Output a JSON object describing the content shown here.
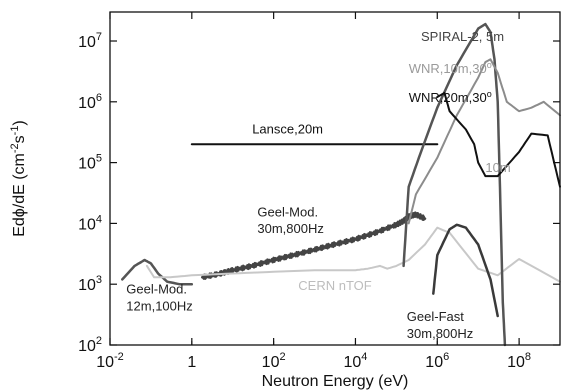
{
  "chart_data": {
    "type": "line",
    "xlabel": "Neutron Energy (eV)",
    "ylabel": "E dϕ/dE (cm⁻²s⁻¹)",
    "ylabel_main": "Edϕ/dE (cm",
    "ylabel_exp1": "-2",
    "ylabel_mid": "s",
    "ylabel_exp2": "-1",
    "ylabel_close": ")",
    "x_scale": "log",
    "y_scale": "log",
    "xlim": [
      0.01,
      1000000000
    ],
    "ylim": [
      100,
      30000000
    ],
    "grid": false,
    "x_ticks": [
      {
        "value": 0.01,
        "base": "10",
        "exp": "-2"
      },
      {
        "value": 1,
        "base": "1",
        "exp": ""
      },
      {
        "value": 100,
        "base": "10",
        "exp": "2"
      },
      {
        "value": 10000,
        "base": "10",
        "exp": "4"
      },
      {
        "value": 1000000,
        "base": "10",
        "exp": "6"
      },
      {
        "value": 100000000,
        "base": "10",
        "exp": "8"
      }
    ],
    "y_ticks": [
      {
        "value": 100,
        "base": "10",
        "exp": "2"
      },
      {
        "value": 1000,
        "base": "10",
        "exp": "3"
      },
      {
        "value": 10000,
        "base": "10",
        "exp": "4"
      },
      {
        "value": 100000,
        "base": "10",
        "exp": "5"
      },
      {
        "value": 1000000,
        "base": "10",
        "exp": "6"
      },
      {
        "value": 10000000,
        "base": "10",
        "exp": "7"
      }
    ],
    "series": [
      {
        "name": "Lansce,20m",
        "color": "#111111",
        "width": 2,
        "x": [
          1,
          1000000
        ],
        "y": [
          200000,
          200000
        ]
      },
      {
        "name": "Geel-Mod. 30m,800Hz",
        "color": "#444444",
        "width": 2.5,
        "jitter": true,
        "x": [
          1.8,
          5,
          10,
          30,
          100,
          300,
          1000,
          3000,
          10000,
          30000,
          100000,
          150000,
          200000,
          300000,
          500000
        ],
        "y": [
          1300,
          1500,
          1700,
          2000,
          2500,
          3000,
          3700,
          4500,
          5500,
          7000,
          9500,
          11000,
          13000,
          14000,
          12000
        ]
      },
      {
        "name": "Geel-Mod. 12m,100Hz",
        "color": "#555555",
        "width": 2.5,
        "x": [
          0.02,
          0.04,
          0.07,
          0.1,
          0.15,
          0.25,
          0.5,
          1
        ],
        "y": [
          1200,
          2000,
          2500,
          2200,
          1500,
          1100,
          1000,
          1000
        ]
      },
      {
        "name": "CERN nTOF",
        "color": "#c8c8c8",
        "width": 2,
        "x": [
          0.08,
          0.12,
          0.3,
          1,
          10,
          100,
          1000,
          10000,
          20000,
          40000,
          60000,
          100000,
          200000,
          500000,
          1000000,
          2000000,
          10000000,
          30000000,
          100000000,
          1000000000
        ],
        "y": [
          2000,
          1300,
          1300,
          1400,
          1500,
          1600,
          1700,
          1700,
          1800,
          2000,
          1800,
          2000,
          2500,
          4500,
          8500,
          7000,
          1800,
          1400,
          2600,
          1100
        ]
      },
      {
        "name": "Geel-Fast 30m,800Hz",
        "color": "#3a3a3a",
        "width": 2.5,
        "x": [
          800000,
          1000000,
          2000000,
          3000000,
          5000000,
          10000000,
          20000000,
          30000000
        ],
        "y": [
          700,
          3000,
          8000,
          9500,
          8500,
          4500,
          1200,
          300
        ]
      },
      {
        "name": "SPIRAL-2, 5m",
        "color": "#555555",
        "width": 2.5,
        "x": [
          150000,
          200000,
          400000,
          1000000,
          3000000,
          10000000,
          15000000,
          20000000,
          25000000,
          30000000,
          35000000,
          40000000,
          45000000
        ],
        "y": [
          2000,
          40000,
          150000,
          800000,
          4000000,
          16000000,
          19000000,
          14000000,
          5000000,
          1000000,
          20000,
          500,
          100
        ]
      },
      {
        "name": "WNR,10m,30°",
        "color": "#8c8c8c",
        "width": 2,
        "x": [
          200000,
          300000,
          1000000,
          3000000,
          10000000,
          15000000,
          20000000,
          30000000,
          50000000,
          100000000,
          200000000,
          400000000,
          1000000000
        ],
        "y": [
          10000,
          30000,
          120000,
          600000,
          2500000,
          4500000,
          5000000,
          3000000,
          1000000,
          700000,
          800000,
          1000000,
          600000
        ]
      },
      {
        "name": "WNR,20m,30°",
        "color": "#111111",
        "width": 2,
        "x": [
          1000000,
          1500000,
          2000000,
          5000000,
          8000000,
          10000000,
          15000000,
          30000000,
          100000000,
          200000000,
          500000000,
          1000000000
        ],
        "y": [
          1200000,
          1400000,
          700000,
          350000,
          200000,
          100000,
          60000,
          60000,
          150000,
          300000,
          280000,
          40000
        ]
      }
    ],
    "annotations": [
      {
        "text": "SPIRAL-2, 5m",
        "x": 400000,
        "y": 10000000,
        "color": "#444444",
        "sup": ""
      },
      {
        "text": "WNR,10m,30",
        "x": 200000,
        "y": 3000000,
        "color": "#9a9a9a",
        "sup": "o"
      },
      {
        "text": "WNR,20m,30",
        "x": 200000,
        "y": 1000000,
        "color": "#111111",
        "sup": "o"
      },
      {
        "text": "Lansce,20m",
        "x": 30,
        "y": 300000,
        "color": "#111111",
        "sup": ""
      },
      {
        "text": "10m",
        "x": 15000000,
        "y": 70000,
        "color": "#9a9a9a",
        "sup": ""
      },
      {
        "text": "Geel-Mod.",
        "x": 40,
        "y": 13000,
        "color": "#222222",
        "sup": ""
      },
      {
        "text": "30m,800Hz",
        "x": 40,
        "y": 7000,
        "color": "#222222",
        "sup": ""
      },
      {
        "text": "Geel-Mod.",
        "x": 0.025,
        "y": 700,
        "color": "#222222",
        "sup": ""
      },
      {
        "text": "12m,100Hz",
        "x": 0.025,
        "y": 370,
        "color": "#222222",
        "sup": ""
      },
      {
        "text": "CERN nTOF",
        "x": 400,
        "y": 800,
        "color": "#bdbdbd",
        "sup": ""
      },
      {
        "text": "Geel-Fast",
        "x": 180000,
        "y": 250,
        "color": "#222222",
        "sup": ""
      },
      {
        "text": "30m,800Hz",
        "x": 180000,
        "y": 130,
        "color": "#222222",
        "sup": ""
      }
    ]
  }
}
